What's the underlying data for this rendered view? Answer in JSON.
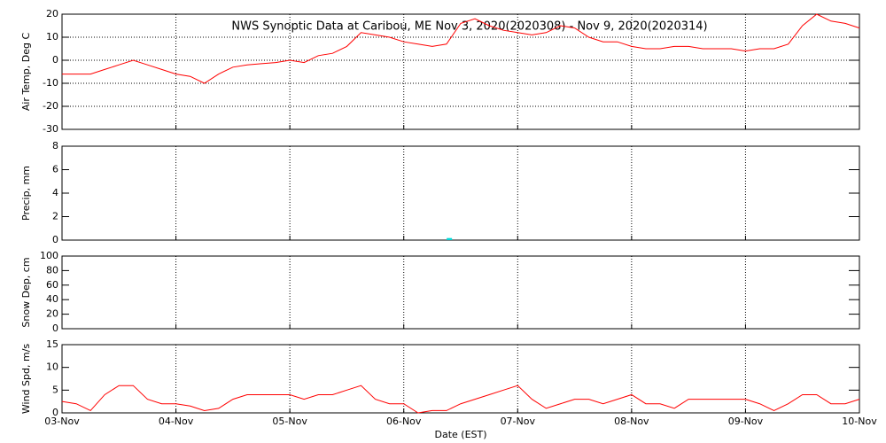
{
  "chart_data": [
    {
      "type": "line",
      "title": "NWS Synoptic Data at Caribou, ME   Nov  3, 2020(2020308) - Nov  9, 2020(2020314)",
      "ylabel": "Air Temp, Deg C",
      "xlim": [
        0,
        168
      ],
      "ylim": [
        -30,
        20
      ],
      "yticks": [
        -30,
        -20,
        -10,
        0,
        10,
        20
      ],
      "grid": "both",
      "series": [
        {
          "color": "#ff0000",
          "x": [
            0,
            3,
            6,
            9,
            12,
            15,
            18,
            21,
            24,
            27,
            30,
            33,
            36,
            39,
            42,
            45,
            48,
            51,
            54,
            57,
            60,
            63,
            66,
            69,
            72,
            75,
            78,
            81,
            84,
            87,
            90,
            93,
            96,
            99,
            102,
            105,
            108,
            111,
            114,
            117,
            120,
            123,
            126,
            129,
            132,
            135,
            138,
            141,
            144,
            147,
            150,
            153,
            156,
            159,
            162,
            165,
            168
          ],
          "values": [
            -6,
            -6,
            -6,
            -4,
            -2,
            0,
            -2,
            -4,
            -6,
            -7,
            -10,
            -6,
            -3,
            -2,
            -1.5,
            -1,
            0,
            -1,
            2,
            3,
            6,
            12,
            11,
            10,
            8,
            7,
            6,
            7,
            16,
            18,
            15,
            13,
            12,
            11,
            12,
            15,
            14,
            10,
            8,
            8,
            6,
            5,
            5,
            6,
            6,
            5,
            5,
            5,
            4,
            5,
            5,
            7,
            15,
            20,
            17,
            16,
            14
          ]
        }
      ]
    },
    {
      "type": "bar",
      "ylabel": "Precip, mm",
      "xlim": [
        0,
        168
      ],
      "ylim": [
        0,
        8
      ],
      "yticks": [
        0,
        2,
        4,
        6,
        8
      ],
      "grid": "x",
      "series": [
        {
          "color": "#00d8d8",
          "x": [
            81.6
          ],
          "values": [
            0.1
          ]
        }
      ]
    },
    {
      "type": "line",
      "ylabel": "Snow Dep, cm",
      "xlim": [
        0,
        168
      ],
      "ylim": [
        0,
        100
      ],
      "yticks": [
        0,
        20,
        40,
        60,
        80,
        100
      ],
      "grid": "x"
    },
    {
      "type": "line",
      "ylabel": "Wind Spd, m/s",
      "xlabel": "Date (EST)",
      "xlim": [
        0,
        168
      ],
      "ylim": [
        0,
        15
      ],
      "yticks": [
        0,
        5,
        10,
        15
      ],
      "grid": "x",
      "xticks": [
        {
          "value": 0,
          "label": "03-Nov"
        },
        {
          "value": 24,
          "label": "04-Nov"
        },
        {
          "value": 48,
          "label": "05-Nov"
        },
        {
          "value": 72,
          "label": "06-Nov"
        },
        {
          "value": 96,
          "label": "07-Nov"
        },
        {
          "value": 120,
          "label": "08-Nov"
        },
        {
          "value": 144,
          "label": "09-Nov"
        },
        {
          "value": 168,
          "label": "10-Nov"
        }
      ],
      "series": [
        {
          "color": "#ff0000",
          "x": [
            0,
            3,
            6,
            9,
            12,
            15,
            18,
            21,
            24,
            27,
            30,
            33,
            36,
            39,
            42,
            45,
            48,
            51,
            54,
            57,
            60,
            63,
            66,
            69,
            72,
            75,
            78,
            81,
            84,
            87,
            90,
            93,
            96,
            99,
            102,
            105,
            108,
            111,
            114,
            117,
            120,
            123,
            126,
            129,
            132,
            135,
            138,
            141,
            144,
            147,
            150,
            153,
            156,
            159,
            162,
            165,
            168
          ],
          "values": [
            2.5,
            2,
            0.5,
            4,
            6,
            6,
            3,
            2,
            2,
            1.5,
            0.5,
            1,
            3,
            4,
            4,
            4,
            4,
            3,
            4,
            4,
            5,
            6,
            3,
            2,
            2,
            0,
            0.5,
            0.5,
            2,
            3,
            4,
            5,
            6,
            3,
            1,
            2,
            3,
            3,
            2,
            3,
            4,
            2,
            2,
            1,
            3,
            3,
            3,
            3,
            3,
            2,
            0.5,
            2,
            4,
            4,
            2,
            2,
            3
          ]
        }
      ]
    }
  ]
}
